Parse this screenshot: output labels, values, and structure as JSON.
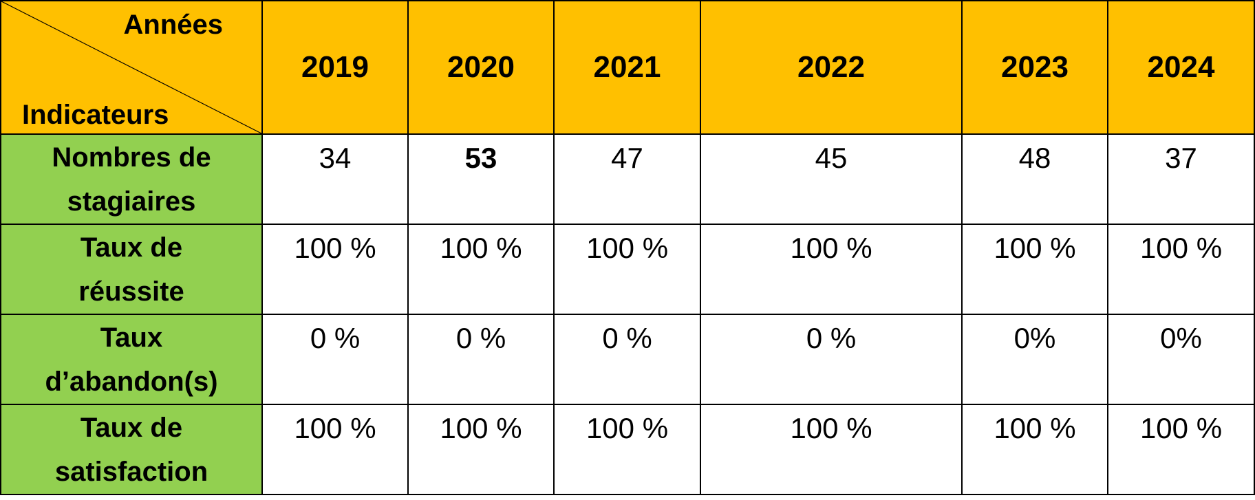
{
  "table": {
    "corner": {
      "top": "Années",
      "bottom": "Indicateurs"
    },
    "years": [
      "2019",
      "2020",
      "2021",
      "2022",
      "2023",
      "2024"
    ],
    "rows": [
      {
        "label_line1": "Nombres de",
        "label_line2": "stagiaires",
        "values": [
          "34",
          "53",
          "47",
          "45",
          "48",
          "37"
        ]
      },
      {
        "label_line1": "Taux de",
        "label_line2": "réussite",
        "values": [
          "100 %",
          "100 %",
          "100 %",
          "100 %",
          "100 %",
          "100 %"
        ]
      },
      {
        "label_line1": "Taux",
        "label_line2": "d’abandon(s)",
        "values": [
          "0 %",
          "0 %",
          "0 %",
          "0 %",
          "0%",
          "0%"
        ]
      },
      {
        "label_line1": "Taux de",
        "label_line2": "satisfaction",
        "values": [
          "100 %",
          "100 %",
          "100 %",
          "100 %",
          "100 %",
          "100 %"
        ]
      }
    ],
    "colors": {
      "header": "#FFC000",
      "row_header": "#92D050",
      "border": "#000000"
    }
  }
}
